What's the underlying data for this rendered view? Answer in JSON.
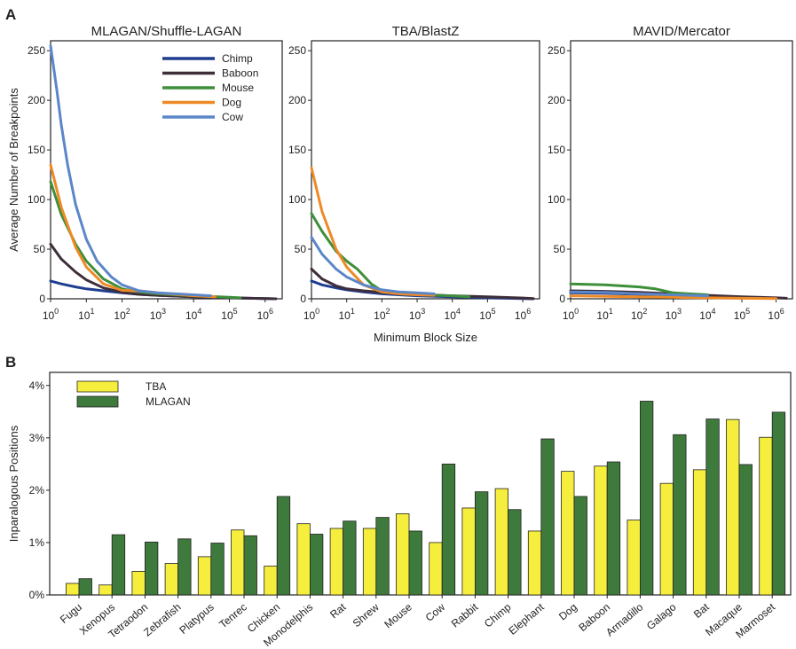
{
  "panel_a_letter": "A",
  "panel_b_letter": "B",
  "chart_data": [
    {
      "type": "line",
      "title": "MLAGAN/Shuffle-LAGAN",
      "xlabel": "",
      "ylabel": "Average Number of Breakpoints",
      "xscale": "log",
      "xlim": [
        1,
        3000000
      ],
      "ylim": [
        0,
        260
      ],
      "yticks": [
        0,
        50,
        100,
        150,
        200,
        250
      ],
      "xticks": [
        1,
        10,
        100,
        1000,
        10000,
        100000,
        1000000
      ],
      "xtick_labels": [
        {
          "base": "10",
          "exp": "0"
        },
        {
          "base": "10",
          "exp": "1"
        },
        {
          "base": "10",
          "exp": "2"
        },
        {
          "base": "10",
          "exp": "3"
        },
        {
          "base": "10",
          "exp": "4"
        },
        {
          "base": "10",
          "exp": "5"
        },
        {
          "base": "10",
          "exp": "6"
        }
      ],
      "legend": "top-right",
      "series": [
        {
          "name": "Chimp",
          "color": "#1f3d8f",
          "x": [
            1,
            2,
            5,
            10,
            30,
            100,
            300,
            1000,
            10000,
            100000,
            1000000,
            2000000
          ],
          "y": [
            18,
            15,
            12,
            10,
            8,
            6,
            4.5,
            3.5,
            2,
            1,
            0.3,
            0
          ]
        },
        {
          "name": "Baboon",
          "color": "#3e2e3a",
          "x": [
            1,
            2,
            5,
            10,
            30,
            100,
            300,
            1000,
            10000,
            100000,
            1000000,
            2000000
          ],
          "y": [
            55,
            40,
            27,
            19,
            11,
            6.5,
            4.5,
            3.5,
            2,
            1,
            0.3,
            0
          ]
        },
        {
          "name": "Mouse",
          "color": "#3e8f3a",
          "x": [
            1,
            2,
            5,
            10,
            30,
            100,
            300,
            1000,
            10000,
            100000,
            200000
          ],
          "y": [
            118,
            85,
            55,
            38,
            20,
            10,
            7,
            5,
            3,
            1.5,
            1
          ]
        },
        {
          "name": "Dog",
          "color": "#ee8a26",
          "x": [
            1,
            2,
            5,
            10,
            30,
            100,
            300,
            1000,
            10000,
            40000
          ],
          "y": [
            135,
            92,
            52,
            32,
            15,
            8.5,
            8,
            6,
            3,
            2
          ]
        },
        {
          "name": "Cow",
          "color": "#5b86c8",
          "x": [
            1,
            1.5,
            2,
            3,
            5,
            10,
            20,
            50,
            100,
            300,
            1000,
            10000,
            30000
          ],
          "y": [
            255,
            210,
            175,
            135,
            95,
            60,
            38,
            22,
            14,
            8,
            6,
            4,
            3
          ]
        }
      ]
    },
    {
      "type": "line",
      "title": "TBA/BlastZ",
      "xlabel": "Minimum Block Size",
      "ylabel": "",
      "xscale": "log",
      "xlim": [
        1,
        3000000
      ],
      "ylim": [
        0,
        260
      ],
      "yticks": [
        0,
        50,
        100,
        150,
        200,
        250
      ],
      "xticks": [
        1,
        10,
        100,
        1000,
        10000,
        100000,
        1000000
      ],
      "xtick_labels": [
        {
          "base": "10",
          "exp": "0"
        },
        {
          "base": "10",
          "exp": "1"
        },
        {
          "base": "10",
          "exp": "2"
        },
        {
          "base": "10",
          "exp": "3"
        },
        {
          "base": "10",
          "exp": "4"
        },
        {
          "base": "10",
          "exp": "5"
        },
        {
          "base": "10",
          "exp": "6"
        }
      ],
      "series": [
        {
          "name": "Chimp",
          "color": "#1f3d8f",
          "x": [
            1,
            2,
            5,
            10,
            30,
            100,
            300,
            1000,
            10000,
            100000,
            1000000,
            2000000
          ],
          "y": [
            18,
            14,
            11,
            9,
            7,
            5,
            4,
            3,
            2,
            1,
            0.3,
            0
          ]
        },
        {
          "name": "Baboon",
          "color": "#3e2e3a",
          "x": [
            1,
            2,
            5,
            10,
            30,
            100,
            300,
            1000,
            10000,
            100000,
            1000000,
            2000000
          ],
          "y": [
            30,
            20,
            13,
            10,
            8,
            6.5,
            5.5,
            4.5,
            3,
            2,
            0.8,
            0.3
          ]
        },
        {
          "name": "Mouse",
          "color": "#3e8f3a",
          "x": [
            1,
            2,
            5,
            10,
            20,
            50,
            100,
            300,
            1000,
            10000,
            30000
          ],
          "y": [
            86,
            68,
            48,
            38,
            30,
            15,
            8,
            5,
            4,
            3,
            2
          ]
        },
        {
          "name": "Dog",
          "color": "#ee8a26",
          "x": [
            1,
            2,
            5,
            10,
            30,
            100,
            300,
            1000,
            3000
          ],
          "y": [
            132,
            88,
            50,
            32,
            14,
            7,
            5,
            4,
            3.5
          ]
        },
        {
          "name": "Cow",
          "color": "#5b86c8",
          "x": [
            1,
            2,
            5,
            10,
            30,
            100,
            300,
            1000,
            3000
          ],
          "y": [
            62,
            45,
            30,
            22,
            14,
            9,
            7,
            6,
            5
          ]
        }
      ]
    },
    {
      "type": "line",
      "title": "MAVID/Mercator",
      "xlabel": "",
      "ylabel": "",
      "xscale": "log",
      "xlim": [
        1,
        3000000
      ],
      "ylim": [
        0,
        260
      ],
      "yticks": [
        0,
        50,
        100,
        150,
        200,
        250
      ],
      "xticks": [
        1,
        10,
        100,
        1000,
        10000,
        100000,
        1000000
      ],
      "xtick_labels": [
        {
          "base": "10",
          "exp": "0"
        },
        {
          "base": "10",
          "exp": "1"
        },
        {
          "base": "10",
          "exp": "2"
        },
        {
          "base": "10",
          "exp": "3"
        },
        {
          "base": "10",
          "exp": "4"
        },
        {
          "base": "10",
          "exp": "5"
        },
        {
          "base": "10",
          "exp": "6"
        }
      ],
      "series": [
        {
          "name": "Chimp",
          "color": "#1f3d8f",
          "x": [
            1,
            10,
            100,
            1000,
            10000
          ],
          "y": [
            6,
            5.5,
            4.5,
            3.5,
            3
          ]
        },
        {
          "name": "Baboon",
          "color": "#3e2e3a",
          "x": [
            1,
            10,
            100,
            1000,
            10000,
            100000,
            1000000,
            2000000
          ],
          "y": [
            8,
            7.5,
            6.5,
            5,
            3.5,
            2,
            1,
            0.5
          ]
        },
        {
          "name": "Mouse",
          "color": "#3e8f3a",
          "x": [
            1,
            10,
            100,
            300,
            1000,
            3000,
            10000
          ],
          "y": [
            15,
            14,
            12,
            10,
            6,
            5,
            4
          ]
        },
        {
          "name": "Dog",
          "color": "#ee8a26",
          "x": [
            1,
            10,
            100,
            1000,
            10000,
            100000,
            1000000
          ],
          "y": [
            3,
            2.5,
            2,
            1.5,
            1,
            0.5,
            0.3
          ]
        },
        {
          "name": "Cow",
          "color": "#5b86c8",
          "x": [
            1,
            10,
            100,
            1000,
            10000
          ],
          "y": [
            7,
            6.5,
            5,
            4,
            3
          ]
        }
      ]
    },
    {
      "type": "bar",
      "title": "",
      "xlabel": "",
      "ylabel": "Inparalogous Positions",
      "ylim": [
        0,
        4.25
      ],
      "yticks": [
        0,
        1,
        2,
        3,
        4
      ],
      "ytick_labels": [
        "0%",
        "1%",
        "2%",
        "3%",
        "4%"
      ],
      "legend": "top-left",
      "categories": [
        "Fugu",
        "Xenopus",
        "Tetraodon",
        "Zebrafish",
        "Platypus",
        "Tenrec",
        "Chicken",
        "Monodelphis",
        "Rat",
        "Shrew",
        "Mouse",
        "Cow",
        "Rabbit",
        "Chimp",
        "Elephant",
        "Dog",
        "Baboon",
        "Armadillo",
        "Galago",
        "Bat",
        "Macaque",
        "Marmoset"
      ],
      "series": [
        {
          "name": "TBA",
          "color": "#f6ee3c",
          "values": [
            0.22,
            0.19,
            0.45,
            0.6,
            0.73,
            1.24,
            0.55,
            1.36,
            1.27,
            1.27,
            1.55,
            1.0,
            1.66,
            2.03,
            1.22,
            2.36,
            2.46,
            1.43,
            2.13,
            2.39,
            3.35,
            3.01
          ]
        },
        {
          "name": "MLAGAN",
          "color": "#3f7a3d",
          "values": [
            0.31,
            1.15,
            1.01,
            1.07,
            0.99,
            1.13,
            1.88,
            1.16,
            1.41,
            1.48,
            1.22,
            2.5,
            1.97,
            1.63,
            2.98,
            1.88,
            2.54,
            3.7,
            3.06,
            3.36,
            2.49,
            3.49
          ]
        }
      ]
    }
  ]
}
